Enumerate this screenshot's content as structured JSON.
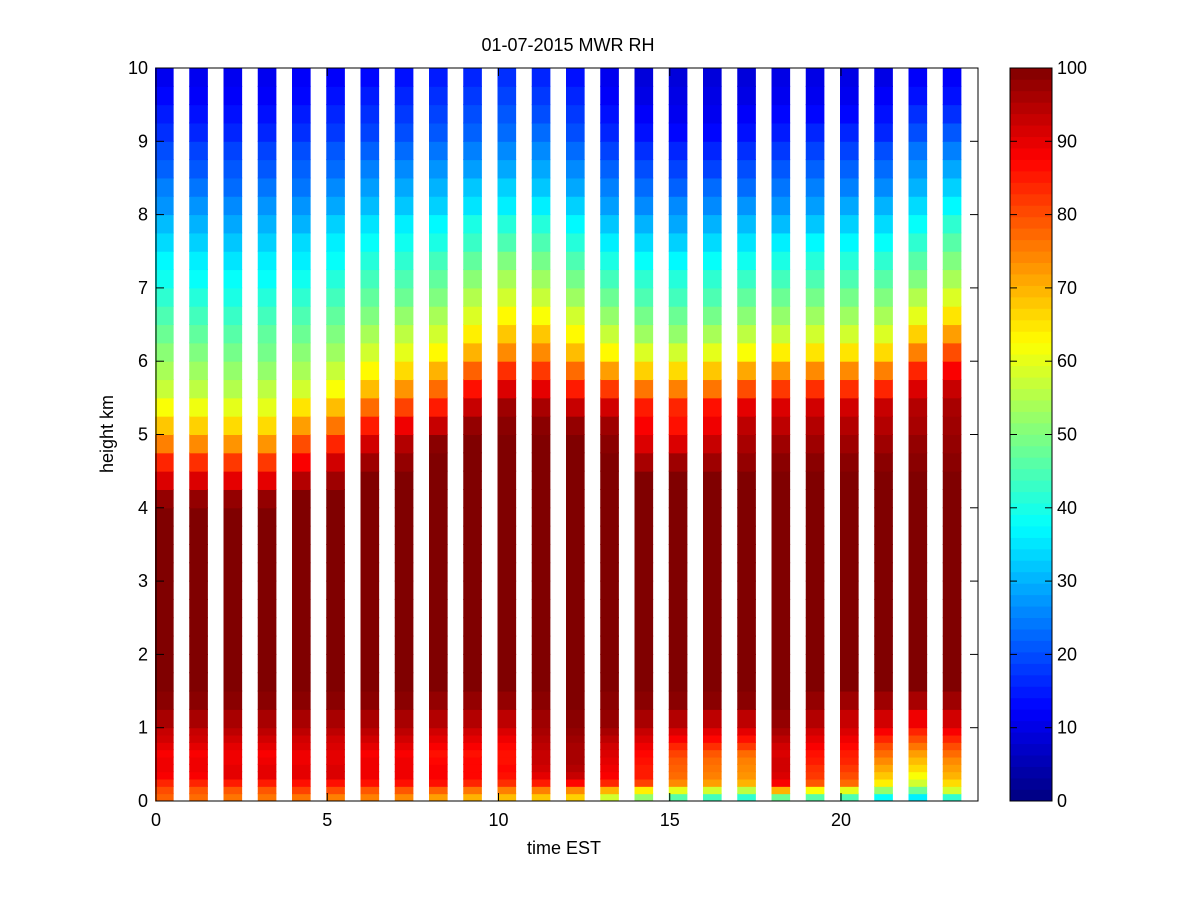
{
  "chart_data": {
    "type": "heatmap",
    "title": "01-07-2015 MWR RH",
    "xlabel": "time EST",
    "ylabel": "height km",
    "xlim": [
      0,
      24
    ],
    "ylim": [
      0,
      10
    ],
    "x_ticks": [
      0,
      5,
      10,
      15,
      20
    ],
    "y_ticks": [
      0,
      1,
      2,
      3,
      4,
      5,
      6,
      7,
      8,
      9,
      10
    ],
    "colorbar": {
      "colormap": "jet",
      "clim": [
        0,
        100
      ],
      "ticks": [
        0,
        10,
        20,
        30,
        40,
        50,
        60,
        70,
        80,
        90,
        100
      ]
    },
    "grid": false,
    "time_hours": [
      0,
      1,
      2,
      3,
      4,
      5,
      6,
      7,
      8,
      9,
      10,
      11,
      12,
      13,
      14,
      15,
      16,
      17,
      18,
      19,
      20,
      21,
      22,
      23
    ],
    "height_levels_km": [
      0,
      0.1,
      0.2,
      0.3,
      0.4,
      0.5,
      0.6,
      0.7,
      0.8,
      0.9,
      1,
      1.25,
      1.5,
      1.75,
      2,
      2.25,
      2.5,
      2.75,
      3,
      3.25,
      3.5,
      3.75,
      4,
      4.25,
      4.5,
      4.75,
      5,
      5.25,
      5.5,
      5.75,
      6,
      6.25,
      6.5,
      6.75,
      7,
      7.25,
      7.5,
      7.75,
      8,
      8.25,
      8.5,
      8.75,
      9,
      9.25,
      9.5,
      9.75
    ],
    "rh_percent": [
      [
        78,
        80,
        84,
        88,
        89,
        89,
        88,
        90,
        92,
        93,
        96,
        99,
        100,
        100,
        100,
        100,
        100,
        100,
        100,
        100,
        100,
        100,
        98,
        91,
        84,
        75,
        68,
        62,
        57,
        54,
        51,
        48,
        45,
        42,
        39,
        37,
        34,
        31,
        27,
        25,
        22,
        20,
        17,
        15,
        13,
        11
      ],
      [
        77,
        79,
        84,
        88,
        89,
        89,
        88,
        90,
        92,
        93,
        96,
        99,
        100,
        100,
        100,
        100,
        100,
        100,
        100,
        100,
        100,
        100,
        98,
        91,
        83,
        74,
        67,
        61,
        56,
        53,
        50,
        47,
        44,
        41,
        38,
        36,
        33,
        30,
        27,
        24,
        21,
        19,
        16,
        14,
        12,
        11
      ],
      [
        76,
        79,
        85,
        90,
        90,
        89,
        89,
        90,
        92,
        94,
        96,
        99,
        100,
        100,
        100,
        100,
        100,
        100,
        100,
        100,
        100,
        100,
        98,
        90,
        82,
        73,
        66,
        60,
        55,
        52,
        49,
        46,
        43,
        40,
        38,
        35,
        32,
        29,
        26,
        23,
        21,
        19,
        16,
        14,
        12,
        11
      ],
      [
        76,
        79,
        85,
        90,
        90,
        89,
        88,
        90,
        92,
        94,
        96,
        99,
        100,
        100,
        100,
        100,
        100,
        100,
        100,
        100,
        100,
        100,
        98,
        90,
        82,
        73,
        66,
        60,
        56,
        52,
        49,
        47,
        44,
        41,
        38,
        36,
        33,
        30,
        27,
        24,
        21,
        19,
        16,
        14,
        12,
        11
      ],
      [
        76,
        81,
        86,
        90,
        90,
        89,
        89,
        91,
        92,
        94,
        96,
        99,
        100,
        100,
        100,
        100,
        100,
        100,
        100,
        100,
        100,
        100,
        100,
        95,
        88,
        80,
        72,
        65,
        58,
        54,
        51,
        48,
        45,
        42,
        39,
        36,
        34,
        30,
        27,
        24,
        22,
        20,
        17,
        15,
        13,
        12
      ],
      [
        75,
        80,
        86,
        91,
        91,
        90,
        90,
        91,
        92,
        94,
        96,
        99,
        100,
        100,
        100,
        100,
        100,
        100,
        100,
        100,
        100,
        100,
        100,
        97,
        92,
        84,
        76,
        69,
        62,
        57,
        53,
        50,
        47,
        44,
        41,
        38,
        36,
        33,
        29,
        26,
        23,
        21,
        18,
        16,
        14,
        12
      ],
      [
        75,
        79,
        86,
        89,
        89,
        89,
        88,
        90,
        92,
        94,
        96,
        99,
        100,
        100,
        100,
        100,
        100,
        100,
        100,
        100,
        100,
        100,
        100,
        100,
        97,
        92,
        85,
        77,
        69,
        63,
        58,
        54,
        50,
        47,
        44,
        41,
        38,
        35,
        31,
        28,
        25,
        22,
        19,
        17,
        15,
        13
      ],
      [
        74,
        79,
        86,
        89,
        89,
        89,
        88,
        90,
        92,
        94,
        96,
        99,
        100,
        100,
        100,
        100,
        100,
        100,
        100,
        100,
        100,
        100,
        100,
        100,
        98,
        95,
        89,
        81,
        73,
        66,
        60,
        56,
        52,
        48,
        45,
        42,
        39,
        36,
        32,
        29,
        26,
        23,
        20,
        18,
        16,
        14
      ],
      [
        72,
        78,
        86,
        88,
        88,
        87,
        86,
        88,
        90,
        92,
        95,
        98,
        100,
        100,
        100,
        100,
        100,
        100,
        100,
        100,
        100,
        100,
        100,
        100,
        100,
        99,
        93,
        85,
        77,
        70,
        63,
        58,
        54,
        50,
        47,
        44,
        40,
        37,
        33,
        30,
        27,
        24,
        21,
        19,
        17,
        15
      ],
      [
        70,
        76,
        84,
        87,
        87,
        87,
        86,
        88,
        90,
        92,
        95,
        98,
        100,
        100,
        100,
        100,
        100,
        100,
        100,
        100,
        100,
        100,
        100,
        100,
        100,
        100,
        98,
        93,
        86,
        78,
        70,
        64,
        59,
        55,
        51,
        47,
        43,
        40,
        35,
        32,
        28,
        25,
        22,
        20,
        18,
        16
      ],
      [
        69,
        75,
        83,
        86,
        87,
        86,
        86,
        87,
        89,
        91,
        94,
        98,
        100,
        100,
        100,
        100,
        100,
        100,
        100,
        100,
        100,
        100,
        100,
        100,
        100,
        100,
        99,
        97,
        91,
        83,
        74,
        68,
        63,
        58,
        54,
        50,
        45,
        41,
        36,
        33,
        29,
        26,
        23,
        21,
        19,
        17
      ],
      [
        68,
        75,
        85,
        90,
        92,
        93,
        93,
        94,
        95,
        96,
        97,
        99,
        100,
        100,
        100,
        100,
        100,
        100,
        100,
        100,
        100,
        100,
        100,
        100,
        100,
        100,
        99,
        96,
        90,
        82,
        74,
        68,
        62,
        57,
        53,
        49,
        45,
        41,
        36,
        32,
        29,
        26,
        23,
        20,
        18,
        16
      ],
      [
        67,
        74,
        87,
        93,
        95,
        96,
        96,
        96,
        97,
        98,
        99,
        100,
        100,
        100,
        100,
        100,
        100,
        100,
        100,
        100,
        100,
        100,
        100,
        100,
        100,
        100,
        98,
        93,
        85,
        77,
        69,
        63,
        58,
        53,
        49,
        45,
        41,
        37,
        33,
        29,
        26,
        23,
        20,
        18,
        16,
        14
      ],
      [
        58,
        70,
        84,
        88,
        89,
        90,
        91,
        92,
        94,
        96,
        98,
        99,
        100,
        100,
        100,
        100,
        100,
        100,
        100,
        100,
        100,
        100,
        100,
        100,
        100,
        99,
        97,
        92,
        82,
        72,
        63,
        57,
        52,
        48,
        44,
        40,
        36,
        32,
        28,
        25,
        22,
        19,
        16,
        14,
        12,
        11
      ],
      [
        52,
        64,
        81,
        85,
        85,
        86,
        87,
        89,
        91,
        93,
        96,
        99,
        100,
        100,
        100,
        100,
        100,
        100,
        100,
        100,
        100,
        100,
        100,
        100,
        96,
        91,
        88,
        85,
        76,
        67,
        59,
        53,
        49,
        45,
        42,
        38,
        34,
        30,
        26,
        23,
        20,
        17,
        14,
        12,
        10,
        9
      ],
      [
        46,
        60,
        74,
        77,
        78,
        79,
        81,
        84,
        88,
        91,
        95,
        99,
        100,
        100,
        100,
        100,
        100,
        100,
        100,
        100,
        100,
        100,
        100,
        100,
        97,
        91,
        86,
        84,
        75,
        66,
        58,
        52,
        48,
        44,
        41,
        37,
        33,
        29,
        26,
        22,
        19,
        16,
        13,
        11,
        10,
        9
      ],
      [
        44,
        58,
        72,
        75,
        76,
        77,
        79,
        83,
        87,
        90,
        94,
        99,
        100,
        100,
        100,
        100,
        100,
        100,
        100,
        100,
        100,
        100,
        100,
        100,
        97,
        93,
        89,
        86,
        76,
        68,
        60,
        54,
        49,
        45,
        42,
        38,
        34,
        30,
        26,
        23,
        19,
        16,
        13,
        11,
        10,
        9
      ],
      [
        42,
        56,
        70,
        73,
        74,
        75,
        77,
        82,
        86,
        90,
        94,
        99,
        100,
        100,
        100,
        100,
        100,
        100,
        100,
        100,
        100,
        100,
        100,
        100,
        98,
        96,
        94,
        90,
        80,
        71,
        62,
        56,
        51,
        47,
        43,
        39,
        35,
        31,
        27,
        23,
        20,
        17,
        14,
        12,
        10,
        9
      ],
      [
        48,
        70,
        88,
        91,
        92,
        92,
        91,
        92,
        94,
        96,
        98,
        100,
        100,
        100,
        100,
        100,
        100,
        100,
        100,
        100,
        100,
        100,
        100,
        100,
        99,
        97,
        94,
        91,
        82,
        73,
        64,
        57,
        52,
        48,
        44,
        40,
        36,
        31,
        27,
        24,
        21,
        18,
        15,
        13,
        11,
        10
      ],
      [
        46,
        62,
        79,
        82,
        83,
        85,
        86,
        88,
        90,
        92,
        95,
        98,
        100,
        100,
        100,
        100,
        100,
        100,
        100,
        100,
        100,
        100,
        100,
        100,
        99,
        97,
        95,
        92,
        83,
        74,
        65,
        58,
        53,
        49,
        45,
        41,
        37,
        32,
        28,
        25,
        22,
        19,
        16,
        13,
        11,
        10
      ],
      [
        45,
        60,
        77,
        80,
        82,
        84,
        85,
        87,
        89,
        91,
        93,
        97,
        100,
        100,
        100,
        100,
        100,
        100,
        100,
        100,
        100,
        100,
        100,
        100,
        99,
        97,
        95,
        92,
        83,
        74,
        65,
        58,
        53,
        49,
        45,
        41,
        37,
        33,
        29,
        25,
        22,
        19,
        16,
        13,
        11,
        10
      ],
      [
        38,
        52,
        64,
        68,
        71,
        74,
        77,
        80,
        84,
        88,
        92,
        97,
        100,
        100,
        100,
        100,
        100,
        100,
        100,
        100,
        100,
        100,
        100,
        100,
        99,
        97,
        95,
        93,
        84,
        75,
        66,
        59,
        54,
        50,
        46,
        42,
        38,
        34,
        30,
        26,
        23,
        20,
        16,
        14,
        12,
        10
      ],
      [
        36,
        48,
        58,
        62,
        66,
        69,
        72,
        76,
        80,
        84,
        89,
        96,
        100,
        100,
        100,
        100,
        100,
        100,
        100,
        100,
        100,
        100,
        100,
        100,
        99,
        98,
        96,
        95,
        91,
        84,
        75,
        67,
        60,
        55,
        50,
        46,
        42,
        38,
        34,
        30,
        27,
        24,
        20,
        17,
        14,
        12
      ],
      [
        42,
        58,
        66,
        70,
        72,
        74,
        77,
        80,
        84,
        88,
        92,
        97,
        100,
        100,
        100,
        100,
        100,
        100,
        100,
        100,
        100,
        100,
        100,
        100,
        99,
        98,
        97,
        96,
        93,
        88,
        80,
        72,
        65,
        59,
        54,
        50,
        46,
        42,
        37,
        33,
        29,
        25,
        21,
        17,
        14,
        12
      ]
    ]
  }
}
